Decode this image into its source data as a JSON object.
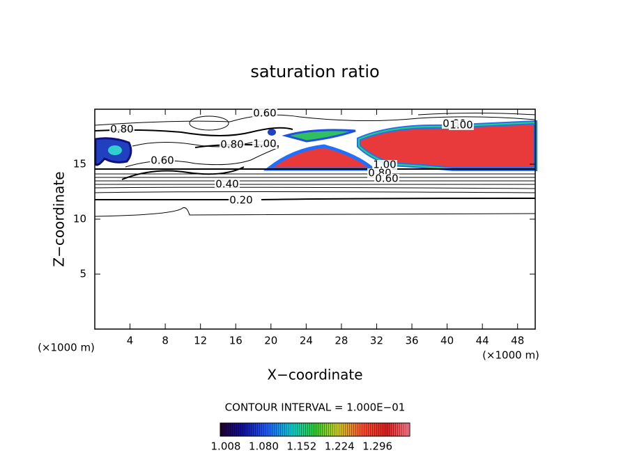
{
  "chart_data": {
    "type": "contour",
    "title": "saturation ratio",
    "x_label": "X−coordinate",
    "y_label": "Z−coordinate",
    "x_unit": "(×1000 m)",
    "y_unit": "(×1000 m)",
    "xlim": [
      0,
      50
    ],
    "ylim": [
      0,
      20
    ],
    "xticks": [
      4,
      8,
      12,
      16,
      20,
      24,
      28,
      32,
      36,
      40,
      44,
      48
    ],
    "yticks": [
      5,
      10,
      15
    ],
    "contour_interval": "CONTOUR INTERVAL = 1.000E−01",
    "contour_labels": [
      {
        "value": 0.8,
        "label": "0.80"
      },
      {
        "value": 0.6,
        "label": "0.60"
      },
      {
        "value": 0.8,
        "label": "0.80"
      },
      {
        "value": 1.0,
        "label": "1.00"
      },
      {
        "value": 0.6,
        "label": "0.60"
      },
      {
        "value": 0.4,
        "label": "0.40"
      },
      {
        "value": 0.2,
        "label": "0.20"
      },
      {
        "value": 1.0,
        "label": "1.00"
      },
      {
        "value": 0.8,
        "label": "0.80"
      },
      {
        "value": 0.6,
        "label": "0.60"
      },
      {
        "value": 0.8,
        "label": "0.80"
      },
      {
        "value": 1.0,
        "label": "1.00"
      }
    ],
    "colorbar_ticks": [
      1.008,
      {
        "value": 1.08,
        "label": "1.080"
      },
      1.152,
      1.224,
      1.296
    ]
  }
}
